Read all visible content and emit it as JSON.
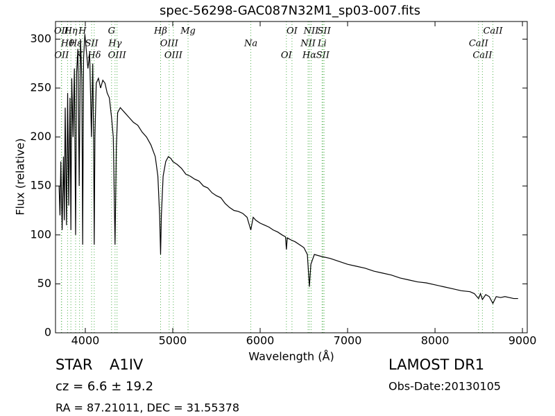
{
  "chart_data": {
    "type": "line",
    "title": "spec-56298-GAC087N32M1_sp03-007.fits",
    "x_label": "Wavelength (Å)",
    "y_label": "Flux (relative)",
    "xlim": [
      3659,
      9055
    ],
    "ylim": [
      0,
      318
    ],
    "xticks": [
      4000,
      5000,
      6000,
      7000,
      8000,
      9000
    ],
    "yticks": [
      0,
      50,
      100,
      150,
      200,
      250,
      300
    ],
    "color": "#000000",
    "marker_color": "#4daf4a",
    "x": [
      3700,
      3710,
      3720,
      3735,
      3750,
      3760,
      3770,
      3785,
      3798,
      3810,
      3825,
      3835,
      3845,
      3860,
      3875,
      3889,
      3900,
      3915,
      3930,
      3945,
      3960,
      3970,
      3980,
      3995,
      4010,
      4030,
      4050,
      4070,
      4085,
      4095,
      4102,
      4110,
      4125,
      4150,
      4175,
      4200,
      4225,
      4250,
      4275,
      4300,
      4320,
      4340,
      4355,
      4370,
      4400,
      4450,
      4500,
      4550,
      4600,
      4650,
      4700,
      4750,
      4800,
      4830,
      4850,
      4861,
      4870,
      4890,
      4920,
      4950,
      4980,
      5000,
      5050,
      5100,
      5150,
      5200,
      5250,
      5300,
      5350,
      5400,
      5450,
      5500,
      5550,
      5600,
      5650,
      5700,
      5750,
      5800,
      5850,
      5893,
      5920,
      5950,
      6000,
      6050,
      6100,
      6150,
      6200,
      6250,
      6290,
      6300,
      6310,
      6350,
      6400,
      6450,
      6500,
      6540,
      6563,
      6580,
      6620,
      6700,
      6800,
      6900,
      7000,
      7100,
      7200,
      7300,
      7400,
      7500,
      7600,
      7700,
      7800,
      7900,
      8000,
      8100,
      8200,
      8300,
      8400,
      8450,
      8498,
      8520,
      8542,
      8580,
      8620,
      8662,
      8700,
      8750,
      8800,
      8850,
      8900,
      8950
    ],
    "values": [
      150,
      120,
      175,
      105,
      180,
      115,
      230,
      110,
      245,
      130,
      240,
      105,
      260,
      200,
      270,
      100,
      265,
      290,
      150,
      300,
      260,
      90,
      280,
      305,
      290,
      270,
      285,
      200,
      275,
      200,
      90,
      200,
      255,
      260,
      250,
      258,
      255,
      245,
      240,
      220,
      200,
      90,
      190,
      225,
      230,
      225,
      220,
      215,
      212,
      205,
      200,
      192,
      180,
      160,
      120,
      80,
      120,
      160,
      175,
      180,
      178,
      175,
      172,
      168,
      162,
      160,
      157,
      155,
      150,
      148,
      143,
      140,
      138,
      132,
      128,
      125,
      124,
      122,
      118,
      105,
      118,
      115,
      112,
      110,
      108,
      105,
      103,
      100,
      98,
      85,
      97,
      95,
      93,
      90,
      87,
      80,
      47,
      70,
      80,
      78,
      76,
      73,
      70,
      68,
      66,
      63,
      61,
      59,
      56,
      54,
      52,
      51,
      49,
      47,
      45,
      43,
      42,
      40,
      35,
      40,
      34,
      39,
      37,
      30,
      37,
      36,
      37,
      36,
      35,
      35
    ],
    "line_markers": [
      {
        "label": "OII",
        "x": 3726
      },
      {
        "label": "Hθ",
        "x": 3797
      },
      {
        "label": "OII",
        "x": 3729
      },
      {
        "label": "Hη",
        "x": 3835
      },
      {
        "label": "Hε",
        "x": 3889
      },
      {
        "label": "K",
        "x": 3934
      },
      {
        "label": "H",
        "x": 3968
      },
      {
        "label": "SII",
        "x": 4072
      },
      {
        "label": "Hδ",
        "x": 4102
      },
      {
        "label": "G",
        "x": 4300
      },
      {
        "label": "Hγ",
        "x": 4340
      },
      {
        "label": "OIII",
        "x": 4363
      },
      {
        "label": "Hβ",
        "x": 4861
      },
      {
        "label": "OIII",
        "x": 4959
      },
      {
        "label": "OIII",
        "x": 5007
      },
      {
        "label": "Mg",
        "x": 5175
      },
      {
        "label": "Na",
        "x": 5893
      },
      {
        "label": "OI",
        "x": 6300
      },
      {
        "label": "OI",
        "x": 6364
      },
      {
        "label": "NII",
        "x": 6548
      },
      {
        "label": "Hα",
        "x": 6563
      },
      {
        "label": "NII",
        "x": 6583
      },
      {
        "label": "Li",
        "x": 6708
      },
      {
        "label": "SII",
        "x": 6717
      },
      {
        "label": "SII",
        "x": 6731
      },
      {
        "label": "CaII",
        "x": 8498
      },
      {
        "label": "CaII",
        "x": 8542
      },
      {
        "label": "CaII",
        "x": 8662
      }
    ]
  },
  "info": {
    "object_class": "STAR",
    "subclass": "A1IV",
    "redshift": "cz = 6.6 ± 19.2",
    "coordinates": "RA = 87.21011, DEC = 31.55378",
    "survey": "LAMOST DR1",
    "obs_date": "Obs-Date:20130105"
  }
}
